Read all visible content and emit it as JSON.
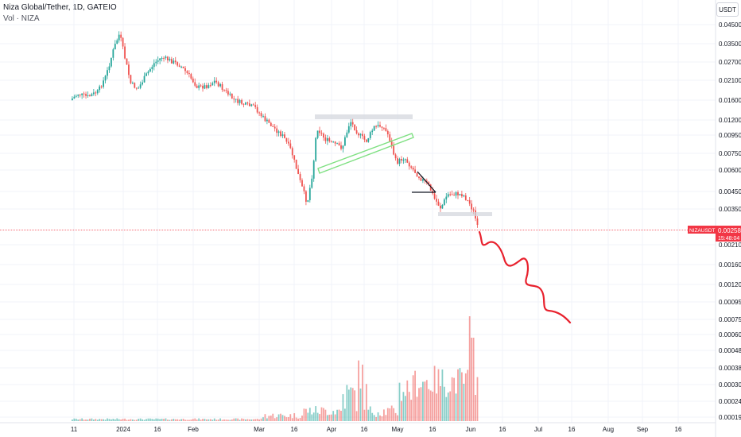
{
  "header": {
    "title": "Niza Global/Tether, 1D, GATEIO",
    "volume_label": "Vol · NIZA"
  },
  "scale_unit": "USDT",
  "price_tag": {
    "symbol": "NIZAUSDT",
    "price": "0.002588",
    "countdown": "15:48:04",
    "color": "#f23645"
  },
  "colors": {
    "up": "#26a69a",
    "down": "#ef5350",
    "trendline": "#7ee081",
    "projection": "#e8212d",
    "zone": "#d1d4dc"
  },
  "chart_data": {
    "type": "candlestick",
    "y_scale": "log",
    "y_ticks": [
      "0.045000",
      "0.035000",
      "0.027000",
      "0.021000",
      "0.016000",
      "0.012000",
      "0.009500",
      "0.007500",
      "0.006000",
      "0.004500",
      "0.003500",
      "0.002100",
      "0.001600",
      "0.001200",
      "0.000950",
      "0.000750",
      "0.000600",
      "0.000480",
      "0.000380",
      "0.000300",
      "0.000240",
      "0.000190"
    ],
    "x_ticks": [
      "11",
      "2024",
      "16",
      "Feb",
      "Mar",
      "16",
      "Apr",
      "16",
      "May",
      "16",
      "Jun",
      "16",
      "Jul",
      "16",
      "Aug",
      "Sep"
    ],
    "current_price": 0.002588,
    "projection_target": 0.00072
  }
}
